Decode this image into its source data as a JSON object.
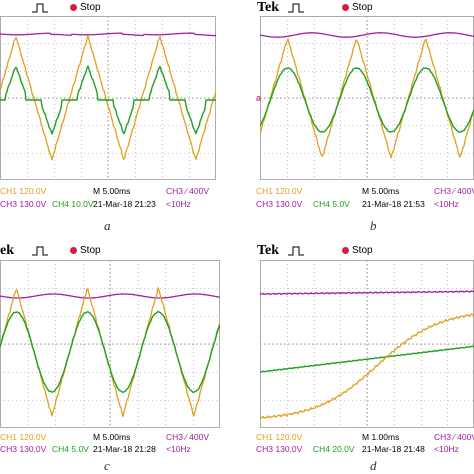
{
  "panels": [
    {
      "id": "a",
      "caption": "a",
      "brand": "",
      "status": "Stop",
      "ch1": "CH1  120.0V",
      "ch3": "CH3  130.0V",
      "ch4": "CH4  10.0V",
      "timebase": "M 5.00ms",
      "date": "21-Mar-18  21:23",
      "trigger": "CH3 ∕ 400V",
      "freq": "<10Hz"
    },
    {
      "id": "b",
      "caption": "b",
      "brand": "Tek",
      "status": "Stop",
      "ch1": "CH1  120.0V",
      "ch3": "CH3  130.0V",
      "ch4": "CH4  5.0V",
      "timebase": "M 5.00ms",
      "date": "21-Mar-18  21:53",
      "trigger": "CH3 ∕ 400V",
      "freq": "<10Hz"
    },
    {
      "id": "c",
      "caption": "c",
      "brand": "ek",
      "status": "Stop",
      "ch1": "CH1  120.0V",
      "ch3": "CH3  130.0V",
      "ch4": "CH4  5.0V",
      "timebase": "M 5.00ms",
      "date": "21-Mar-18  21:28",
      "trigger": "CH3 ∕ 400V",
      "freq": "<10Hz"
    },
    {
      "id": "d",
      "caption": "d",
      "brand": "Tek",
      "status": "Stop",
      "ch1": "CH1  120.0V",
      "ch3": "CH3  130.0V",
      "ch4": "CH4  20.0V",
      "timebase": "M 1.00ms",
      "date": "21-Mar-18  21:48",
      "trigger": "CH3 ∕ 400V",
      "freq": "<10Hz"
    }
  ],
  "colors": {
    "ch1": "#e0a020",
    "ch3": "#a020a0",
    "ch4": "#20a020",
    "grid": "#9a9a9a",
    "stop": "#d41f3b"
  },
  "icons": [
    "trigger-pulse-icon",
    "stop-dot-icon",
    "trigger-arrow-icon"
  ]
}
